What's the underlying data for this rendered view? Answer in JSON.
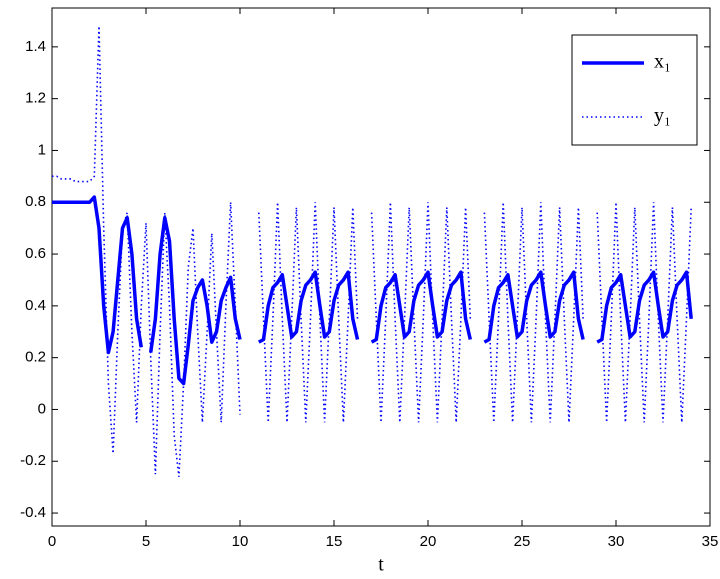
{
  "chart_data": {
    "type": "line",
    "xlabel": "t",
    "x": [
      0,
      0.25,
      0.5,
      0.75,
      1,
      1.25,
      1.5,
      1.75,
      2,
      2.25,
      2.5,
      2.75,
      3,
      3.25,
      3.5,
      3.75,
      4,
      4.25,
      4.5,
      4.75,
      5,
      5.25,
      5.5,
      5.75,
      6,
      6.25,
      6.5,
      6.75,
      7,
      7.25,
      7.5,
      7.75,
      8,
      8.25,
      8.5,
      8.75,
      9,
      9.25,
      9.5,
      9.75,
      10,
      10.25,
      10.5,
      10.75,
      11,
      11.25,
      11.5,
      11.75,
      12,
      12.25,
      12.5,
      12.75,
      13,
      13.25,
      13.5,
      13.75,
      14,
      14.25,
      14.5,
      14.75,
      15,
      15.25,
      15.5,
      15.75,
      16,
      16.25,
      16.5,
      16.75,
      17,
      17.25,
      17.5,
      17.75,
      18,
      18.25,
      18.5,
      18.75,
      19,
      19.25,
      19.5,
      19.75,
      20,
      20.25,
      20.5,
      20.75,
      21,
      21.25,
      21.5,
      21.75,
      22,
      22.25,
      22.5,
      22.75,
      23,
      23.25,
      23.5,
      23.75,
      24,
      24.25,
      24.5,
      24.75,
      25,
      25.25,
      25.5,
      25.75,
      26,
      26.25,
      26.5,
      26.75,
      27,
      27.25,
      27.5,
      27.75,
      28,
      28.25,
      28.5,
      28.75,
      29,
      29.25,
      29.5,
      29.75,
      30,
      30.25,
      30.5,
      30.75,
      31,
      31.25,
      31.5,
      31.75,
      32,
      32.25,
      32.5,
      32.75,
      33,
      33.25,
      33.5,
      33.75,
      34
    ],
    "series": [
      {
        "name": "x₁",
        "color": "#0000ff",
        "style": "solid",
        "values": [
          0.8,
          0.8,
          0.8,
          0.8,
          0.8,
          0.8,
          0.8,
          0.8,
          0.8,
          0.82,
          0.7,
          0.4,
          0.22,
          0.3,
          0.5,
          0.7,
          0.74,
          0.6,
          0.35,
          0.24,
          null,
          0.22,
          0.35,
          0.6,
          0.74,
          0.65,
          0.35,
          0.12,
          0.1,
          0.25,
          0.42,
          0.47,
          0.5,
          0.4,
          0.26,
          0.3,
          0.42,
          0.47,
          0.51,
          0.35,
          0.27,
          null,
          null,
          null,
          0.26,
          0.27,
          0.4,
          0.47,
          0.49,
          0.52,
          0.4,
          0.28,
          0.3,
          0.42,
          0.48,
          0.5,
          0.53,
          0.4,
          0.28,
          0.3,
          0.42,
          0.48,
          0.5,
          0.53,
          0.35,
          0.27,
          null,
          null,
          0.26,
          0.27,
          0.4,
          0.47,
          0.49,
          0.52,
          0.4,
          0.28,
          0.3,
          0.42,
          0.48,
          0.5,
          0.53,
          0.4,
          0.28,
          0.3,
          0.42,
          0.48,
          0.5,
          0.53,
          0.35,
          0.27,
          null,
          null,
          0.26,
          0.27,
          0.4,
          0.47,
          0.49,
          0.52,
          0.4,
          0.28,
          0.3,
          0.42,
          0.48,
          0.5,
          0.53,
          0.4,
          0.28,
          0.3,
          0.42,
          0.48,
          0.5,
          0.53,
          0.35,
          0.27,
          null,
          null,
          0.26,
          0.27,
          0.4,
          0.47,
          0.49,
          0.52,
          0.4,
          0.28,
          0.3,
          0.42,
          0.48,
          0.5,
          0.53,
          0.4,
          0.28,
          0.3,
          0.42,
          0.48,
          0.5,
          0.53,
          0.35
        ]
      },
      {
        "name": "y₁",
        "color": "#0000ff",
        "style": "dotted",
        "values": [
          0.9,
          0.9,
          0.89,
          0.89,
          0.89,
          0.88,
          0.88,
          0.88,
          0.88,
          0.9,
          1.48,
          0.7,
          0.1,
          -0.17,
          0.3,
          0.7,
          0.76,
          0.3,
          -0.05,
          0.4,
          0.72,
          0.2,
          -0.25,
          0.3,
          0.76,
          0.4,
          -0.1,
          -0.26,
          0.1,
          0.55,
          0.7,
          0.3,
          -0.05,
          0.3,
          0.68,
          0.3,
          -0.05,
          0.4,
          0.8,
          0.4,
          -0.02,
          null,
          null,
          null,
          0.76,
          0.35,
          -0.05,
          0.35,
          0.8,
          0.35,
          -0.05,
          0.35,
          0.78,
          0.35,
          -0.05,
          0.35,
          0.8,
          0.35,
          -0.05,
          0.35,
          0.78,
          0.35,
          -0.05,
          0.35,
          0.78,
          0.35,
          null,
          null,
          0.76,
          0.35,
          -0.05,
          0.35,
          0.8,
          0.35,
          -0.05,
          0.35,
          0.78,
          0.35,
          -0.05,
          0.35,
          0.8,
          0.35,
          -0.05,
          0.35,
          0.78,
          0.35,
          -0.05,
          0.35,
          0.78,
          0.35,
          null,
          null,
          0.76,
          0.35,
          -0.05,
          0.35,
          0.8,
          0.35,
          -0.05,
          0.35,
          0.78,
          0.35,
          -0.05,
          0.35,
          0.8,
          0.35,
          -0.05,
          0.35,
          0.78,
          0.35,
          -0.05,
          0.35,
          0.78,
          0.35,
          null,
          null,
          0.76,
          0.35,
          -0.05,
          0.35,
          0.8,
          0.35,
          -0.05,
          0.35,
          0.78,
          0.35,
          -0.05,
          0.35,
          0.8,
          0.35,
          -0.05,
          0.35,
          0.78,
          0.35,
          -0.05,
          0.35,
          0.78
        ]
      }
    ],
    "xlim": [
      0,
      35
    ],
    "xticks": [
      0,
      5,
      10,
      15,
      20,
      25,
      30,
      35
    ],
    "ylim": [
      -0.45,
      1.55
    ],
    "yticks": [
      -0.4,
      -0.2,
      0,
      0.2,
      0.4,
      0.6,
      0.8,
      1,
      1.2,
      1.4
    ],
    "legend": "northeast",
    "grid": false
  }
}
